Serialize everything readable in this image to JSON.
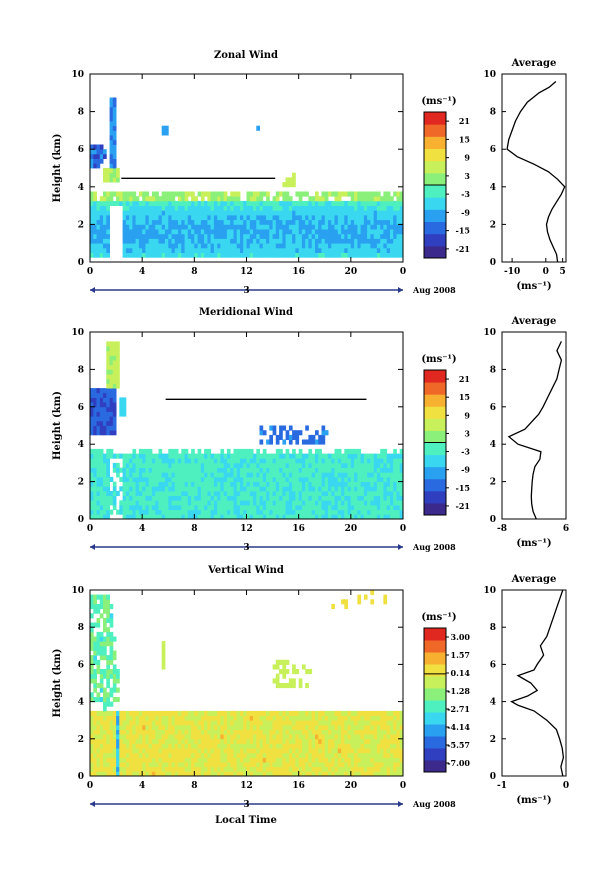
{
  "x_axis_label": "Local Time",
  "date_label": "Aug 2008",
  "day_label": "3",
  "average_title": "Average",
  "unit_label": "(ms⁻¹)",
  "colormap": [
    "#3b2a8c",
    "#2f3fc0",
    "#2a6ae0",
    "#2aa0f0",
    "#3ad8f0",
    "#4ef0c0",
    "#8af07a",
    "#c8f05a",
    "#f0e040",
    "#f8b030",
    "#f06828",
    "#e02820"
  ],
  "chart_data": [
    {
      "type": "heatmap",
      "title": "Zonal Wind",
      "xlabel": "",
      "ylabel": "Height (km)",
      "xlim": [
        0,
        24
      ],
      "ylim": [
        0,
        10
      ],
      "x_ticks": [
        "0",
        "4",
        "8",
        "12",
        "16",
        "20",
        "0"
      ],
      "y_ticks": [
        "0",
        "2",
        "4",
        "6",
        "8",
        "10"
      ],
      "colorbar_ticks": [
        "21",
        "15",
        "9",
        "3",
        "-3",
        "-9",
        "-15",
        "-21"
      ],
      "colorbar_range": [
        -24,
        24
      ],
      "profile": {
        "xlim": [
          -13,
          6
        ],
        "x_ticks": [
          "-10",
          "0",
          "5"
        ],
        "y_ticks": [
          "0",
          "2",
          "4",
          "6",
          "8",
          "10"
        ],
        "height": [
          0,
          0.4,
          0.8,
          1.2,
          1.6,
          2.0,
          2.4,
          2.8,
          3.2,
          3.6,
          4.0,
          4.4,
          4.8,
          5.2,
          5.6,
          6.0,
          6.5,
          7.0,
          7.5,
          8.0,
          8.5,
          9.0,
          9.3,
          9.6
        ],
        "value": [
          3.5,
          3.2,
          2.2,
          1.2,
          0.5,
          0.2,
          0.8,
          1.8,
          3.2,
          4.6,
          5.6,
          3.5,
          0.8,
          -3.5,
          -8.5,
          -11.5,
          -11.0,
          -10.0,
          -9.0,
          -7.5,
          -5.5,
          -2.0,
          1.0,
          3.0
        ]
      }
    },
    {
      "type": "heatmap",
      "title": "Meridional Wind",
      "xlabel": "",
      "ylabel": "Height (km)",
      "xlim": [
        0,
        24
      ],
      "ylim": [
        0,
        10
      ],
      "x_ticks": [
        "0",
        "4",
        "8",
        "12",
        "16",
        "20",
        "0"
      ],
      "y_ticks": [
        "0",
        "2",
        "4",
        "6",
        "8",
        "10"
      ],
      "colorbar_ticks": [
        "21",
        "15",
        "9",
        "3",
        "-3",
        "-9",
        "-15",
        "-21"
      ],
      "colorbar_range": [
        -24,
        24
      ],
      "profile": {
        "xlim": [
          -8,
          6
        ],
        "x_ticks": [
          "-8",
          "6"
        ],
        "y_ticks": [
          "0",
          "2",
          "4",
          "6",
          "8",
          "10"
        ],
        "height": [
          0,
          0.4,
          0.8,
          1.2,
          1.6,
          2.0,
          2.4,
          2.8,
          3.2,
          3.6,
          4.0,
          4.4,
          4.8,
          5.2,
          5.6,
          6.0,
          6.5,
          7.0,
          7.5,
          8.0,
          8.5,
          9.0,
          9.5
        ],
        "value": [
          -0.5,
          -1.2,
          -1.5,
          -1.6,
          -1.5,
          -1.4,
          -1.2,
          -0.8,
          0.3,
          0.5,
          -4.5,
          -6.5,
          -3.0,
          -1.5,
          0.0,
          1.0,
          2.0,
          3.0,
          4.0,
          4.5,
          5.0,
          4.0,
          5.0
        ]
      }
    },
    {
      "type": "heatmap",
      "title": "Vertical Wind",
      "xlabel": "Local Time",
      "ylabel": "Height (km)",
      "xlim": [
        0,
        24
      ],
      "ylim": [
        0,
        10
      ],
      "x_ticks": [
        "0",
        "4",
        "8",
        "12",
        "16",
        "20",
        "0"
      ],
      "y_ticks": [
        "0",
        "2",
        "4",
        "6",
        "8",
        "10"
      ],
      "colorbar_ticks": [
        "3.00",
        "1.57",
        "0.14",
        "-1.28",
        "-2.71",
        "-4.14",
        "-5.57",
        "-7.00"
      ],
      "colorbar_range": [
        -7.5,
        3.5
      ],
      "profile": {
        "xlim": [
          -1,
          0
        ],
        "x_ticks": [
          "-1",
          "0"
        ],
        "y_ticks": [
          "0",
          "2",
          "4",
          "6",
          "8",
          "10"
        ],
        "height": [
          0,
          0.5,
          1.0,
          1.5,
          2.0,
          2.5,
          3.0,
          3.5,
          3.8,
          4.0,
          4.3,
          4.6,
          5.0,
          5.4,
          5.7,
          6.0,
          6.5,
          7.0,
          7.5,
          8.0,
          8.5,
          9.0,
          9.5,
          10.0
        ],
        "value": [
          -0.05,
          -0.08,
          -0.04,
          -0.06,
          -0.1,
          -0.15,
          -0.3,
          -0.5,
          -0.75,
          -0.85,
          -0.6,
          -0.45,
          -0.55,
          -0.75,
          -0.5,
          -0.45,
          -0.35,
          -0.4,
          -0.3,
          -0.25,
          -0.2,
          -0.15,
          -0.1,
          -0.05
        ]
      }
    }
  ]
}
